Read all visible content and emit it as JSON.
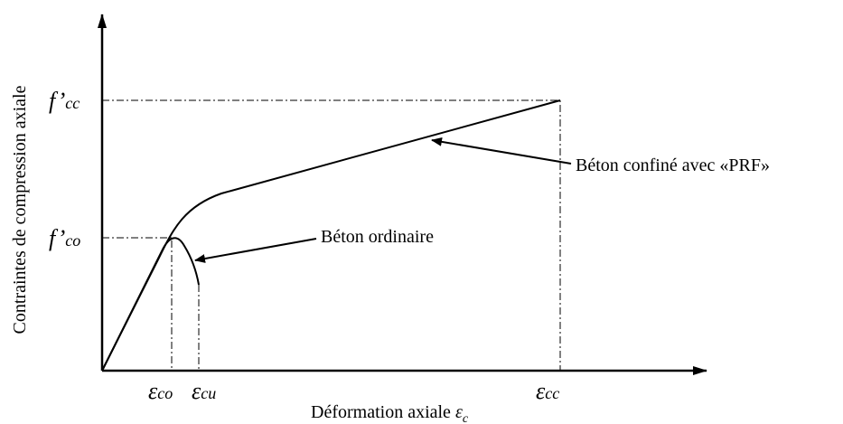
{
  "axes": {
    "y_label": "Contraintes de compression axiale",
    "x_label": {
      "text": "Déformation axiale ",
      "symbol": "ε",
      "sub": "c"
    }
  },
  "y_ticks": [
    {
      "base": "f’",
      "sub": "cc"
    },
    {
      "base": "f’",
      "sub": "co"
    }
  ],
  "x_ticks": [
    {
      "base": "ε",
      "sub": "co"
    },
    {
      "base": "ε",
      "sub": "cu"
    },
    {
      "base": "ε",
      "sub": "cc"
    }
  ],
  "annotations": {
    "ordinary": "Béton ordinaire",
    "confined": "Béton confiné avec «PRF»"
  }
}
